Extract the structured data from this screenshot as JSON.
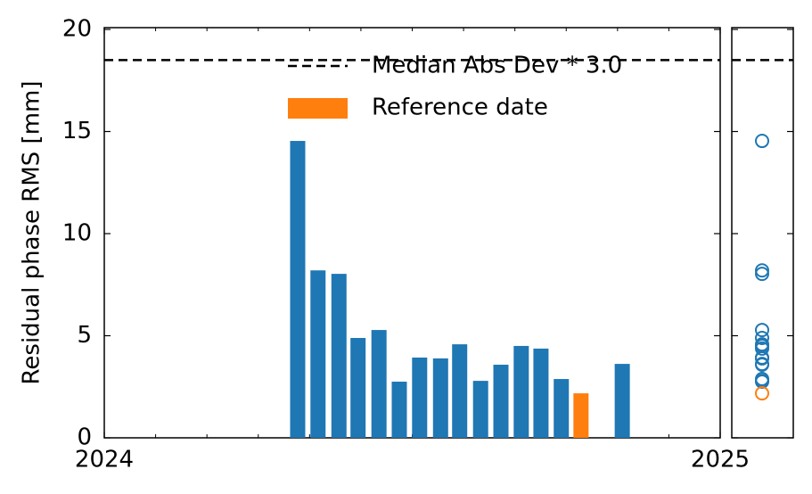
{
  "chart_data": {
    "type": "bar",
    "ylabel": "Residual phase RMS [mm]",
    "x": [
      2024.314,
      2024.347,
      2024.381,
      2024.412,
      2024.446,
      2024.479,
      2024.512,
      2024.546,
      2024.577,
      2024.611,
      2024.644,
      2024.677,
      2024.709,
      2024.742,
      2024.774,
      2024.841
    ],
    "values": [
      14.54,
      8.2,
      8.03,
      4.89,
      5.28,
      2.75,
      3.93,
      3.89,
      4.58,
      2.79,
      3.58,
      4.5,
      4.37,
      2.88,
      2.18,
      3.62
    ],
    "colors": [
      "#1f77b4",
      "#1f77b4",
      "#1f77b4",
      "#1f77b4",
      "#1f77b4",
      "#1f77b4",
      "#1f77b4",
      "#1f77b4",
      "#1f77b4",
      "#1f77b4",
      "#1f77b4",
      "#1f77b4",
      "#1f77b4",
      "#1f77b4",
      "#ff7f0e",
      "#1f77b4"
    ],
    "xlim": [
      2024,
      2025
    ],
    "xticks": [
      2024,
      2025
    ],
    "ylim": [
      0,
      20
    ],
    "yticks": [
      0,
      5,
      10,
      15,
      20
    ],
    "threshold": {
      "name": "Median Abs Dev * 3.0",
      "value": 18.5,
      "color": "#000000"
    },
    "reference": {
      "name": "Reference date",
      "color": "#ff7f0e"
    }
  }
}
